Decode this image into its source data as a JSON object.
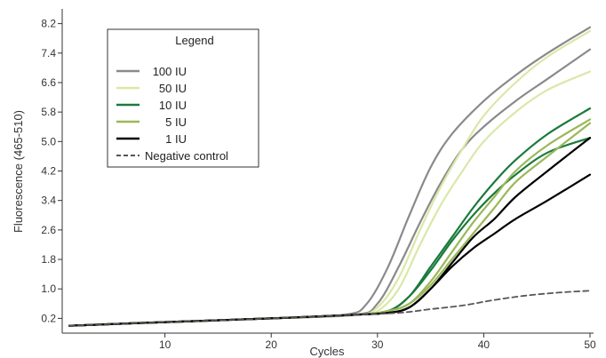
{
  "chart_data": {
    "type": "line",
    "xlabel": "Cycles",
    "ylabel": "Fluorescence (465-510)",
    "xlim": [
      1,
      50
    ],
    "ylim": [
      -0.2,
      8.6
    ],
    "x_ticks": [
      10,
      20,
      30,
      40,
      50
    ],
    "y_ticks": [
      0.2,
      1.0,
      1.8,
      2.6,
      3.4,
      4.2,
      5.0,
      5.8,
      6.6,
      7.4,
      8.2
    ],
    "grid": false,
    "legend": {
      "title": "Legend",
      "position": "top-left",
      "entries": [
        {
          "label": "100 IU",
          "color": "#8a8a8a",
          "dash": "solid"
        },
        {
          "label": "50 IU",
          "color": "#d9e8a8",
          "dash": "solid"
        },
        {
          "label": "10 IU",
          "color": "#1a7a3c",
          "dash": "solid"
        },
        {
          "label": "5 IU",
          "color": "#9ab858",
          "dash": "solid"
        },
        {
          "label": "1 IU",
          "color": "#000000",
          "dash": "solid"
        },
        {
          "label": "Negative control",
          "color": "#555555",
          "dash": "dashed"
        }
      ]
    },
    "series": [
      {
        "group": "100 IU",
        "color": "#8a8a8a",
        "dash": "solid",
        "width": 2.2,
        "x": [
          1,
          10,
          20,
          27,
          29,
          31,
          33,
          35,
          37,
          40,
          43,
          46,
          50
        ],
        "y": [
          0.0,
          0.1,
          0.2,
          0.3,
          0.6,
          1.6,
          3.0,
          4.3,
          5.2,
          6.1,
          6.8,
          7.4,
          8.1
        ]
      },
      {
        "group": "100 IU",
        "color": "#8a8a8a",
        "dash": "solid",
        "width": 2.2,
        "x": [
          1,
          10,
          20,
          28,
          30,
          32,
          34,
          36,
          38,
          40,
          43,
          46,
          50
        ],
        "y": [
          0.0,
          0.1,
          0.2,
          0.3,
          0.6,
          1.6,
          2.8,
          3.9,
          4.8,
          5.4,
          6.1,
          6.7,
          7.5
        ]
      },
      {
        "group": "50 IU",
        "color": "#d9e8a8",
        "dash": "solid",
        "width": 2.2,
        "x": [
          1,
          10,
          20,
          28,
          30,
          32,
          34,
          36,
          38,
          40,
          43,
          46,
          50
        ],
        "y": [
          0.0,
          0.1,
          0.2,
          0.3,
          0.5,
          1.3,
          2.6,
          3.8,
          4.8,
          5.7,
          6.6,
          7.3,
          8.0
        ]
      },
      {
        "group": "50 IU",
        "color": "#d9e8a8",
        "dash": "solid",
        "width": 2.2,
        "x": [
          1,
          10,
          20,
          28,
          30,
          32,
          34,
          36,
          38,
          40,
          43,
          46,
          50
        ],
        "y": [
          0.0,
          0.1,
          0.2,
          0.3,
          0.4,
          1.0,
          2.2,
          3.3,
          4.2,
          5.0,
          5.8,
          6.4,
          6.9
        ]
      },
      {
        "group": "10 IU",
        "color": "#1a7a3c",
        "dash": "solid",
        "width": 2.2,
        "x": [
          1,
          10,
          20,
          28,
          31,
          33,
          35,
          37,
          39,
          41,
          43,
          46,
          50
        ],
        "y": [
          0.0,
          0.1,
          0.2,
          0.3,
          0.4,
          0.8,
          1.6,
          2.4,
          3.2,
          3.9,
          4.5,
          5.2,
          5.9
        ]
      },
      {
        "group": "10 IU",
        "color": "#1a7a3c",
        "dash": "solid",
        "width": 2.2,
        "x": [
          1,
          10,
          20,
          28,
          31,
          33,
          35,
          37,
          39,
          41,
          43,
          46,
          50
        ],
        "y": [
          0.0,
          0.1,
          0.2,
          0.3,
          0.4,
          0.8,
          1.5,
          2.3,
          3.0,
          3.6,
          4.1,
          4.7,
          5.1
        ]
      },
      {
        "group": "5 IU",
        "color": "#9ab858",
        "dash": "solid",
        "width": 2.2,
        "x": [
          1,
          10,
          20,
          28,
          31,
          33,
          35,
          37,
          39,
          41,
          43,
          46,
          50
        ],
        "y": [
          0.0,
          0.1,
          0.2,
          0.3,
          0.4,
          0.6,
          1.2,
          2.0,
          2.8,
          3.5,
          4.2,
          4.9,
          5.6
        ]
      },
      {
        "group": "5 IU",
        "color": "#9ab858",
        "dash": "solid",
        "width": 2.2,
        "x": [
          1,
          10,
          20,
          28,
          31,
          33,
          35,
          37,
          39,
          41,
          43,
          46,
          50
        ],
        "y": [
          0.0,
          0.1,
          0.2,
          0.3,
          0.4,
          0.6,
          1.1,
          1.8,
          2.5,
          3.2,
          3.9,
          4.6,
          5.5
        ]
      },
      {
        "group": "1 IU",
        "color": "#000000",
        "dash": "solid",
        "width": 2.2,
        "x": [
          1,
          10,
          20,
          28,
          31,
          33,
          35,
          37,
          39,
          41,
          43,
          46,
          50
        ],
        "y": [
          0.0,
          0.1,
          0.2,
          0.3,
          0.35,
          0.5,
          1.0,
          1.7,
          2.4,
          2.9,
          3.5,
          4.2,
          5.1
        ]
      },
      {
        "group": "1 IU",
        "color": "#000000",
        "dash": "solid",
        "width": 2.2,
        "x": [
          1,
          10,
          20,
          28,
          31,
          33,
          35,
          37,
          39,
          41,
          43,
          46,
          50
        ],
        "y": [
          0.0,
          0.1,
          0.2,
          0.3,
          0.35,
          0.5,
          1.0,
          1.6,
          2.1,
          2.5,
          2.9,
          3.4,
          4.1
        ]
      },
      {
        "group": "Negative control",
        "color": "#555555",
        "dash": "dashed",
        "width": 1.8,
        "x": [
          1,
          10,
          20,
          28,
          32,
          35,
          38,
          41,
          44,
          47,
          50
        ],
        "y": [
          0.0,
          0.1,
          0.2,
          0.3,
          0.35,
          0.45,
          0.55,
          0.7,
          0.82,
          0.9,
          0.95
        ]
      }
    ]
  }
}
